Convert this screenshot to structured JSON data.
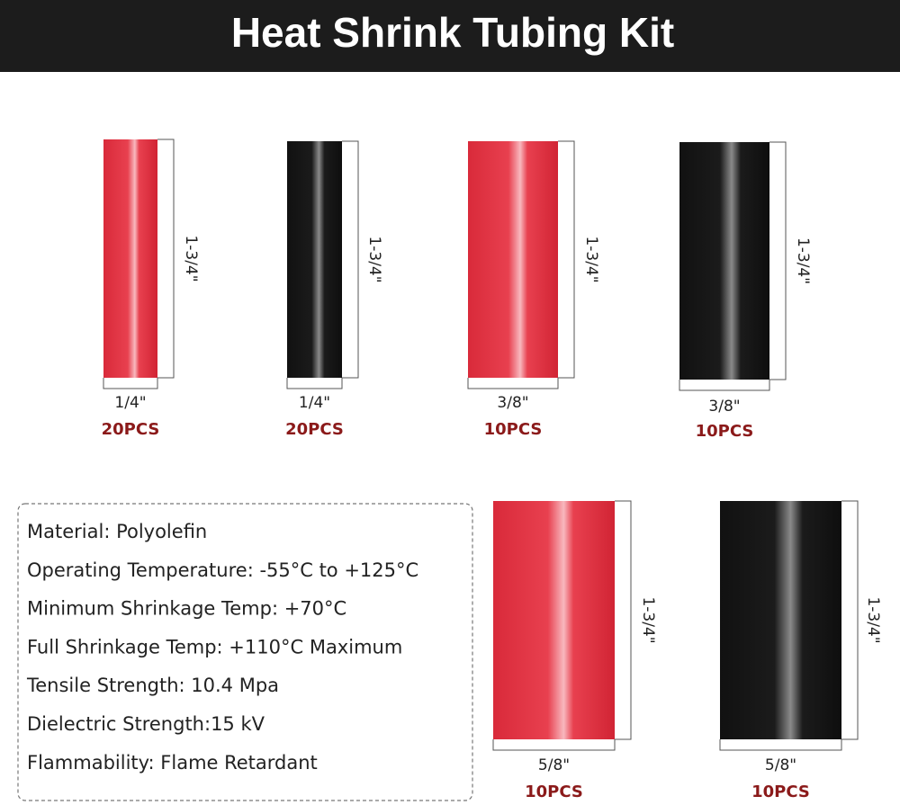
{
  "header": {
    "title": "Heat Shrink Tubing Kit"
  },
  "tubes": [
    {
      "length": "1-3/4\"",
      "diameter": "1/4\"",
      "quantity": "20PCS"
    },
    {
      "length": "1-3/4\"",
      "diameter": "1/4\"",
      "quantity": "20PCS"
    },
    {
      "length": "1-3/4\"",
      "diameter": "3/8\"",
      "quantity": "10PCS"
    },
    {
      "length": "1-3/4\"",
      "diameter": "3/8\"",
      "quantity": "10PCS"
    },
    {
      "length": "1-3/4\"",
      "diameter": "5/8\"",
      "quantity": "10PCS"
    },
    {
      "length": "1-3/4\"",
      "diameter": "5/8\"",
      "quantity": "10PCS"
    }
  ],
  "specs": [
    "Material: Polyolefin",
    "Operating Temperature: -55°C to +125°C",
    "Minimum Shrinkage Temp: +70°C",
    "Full Shrinkage Temp: +110°C Maximum",
    "Tensile Strength: 10.4 Mpa",
    "Dielectric Strength:15 kV",
    "Flammability: Flame Retardant"
  ]
}
